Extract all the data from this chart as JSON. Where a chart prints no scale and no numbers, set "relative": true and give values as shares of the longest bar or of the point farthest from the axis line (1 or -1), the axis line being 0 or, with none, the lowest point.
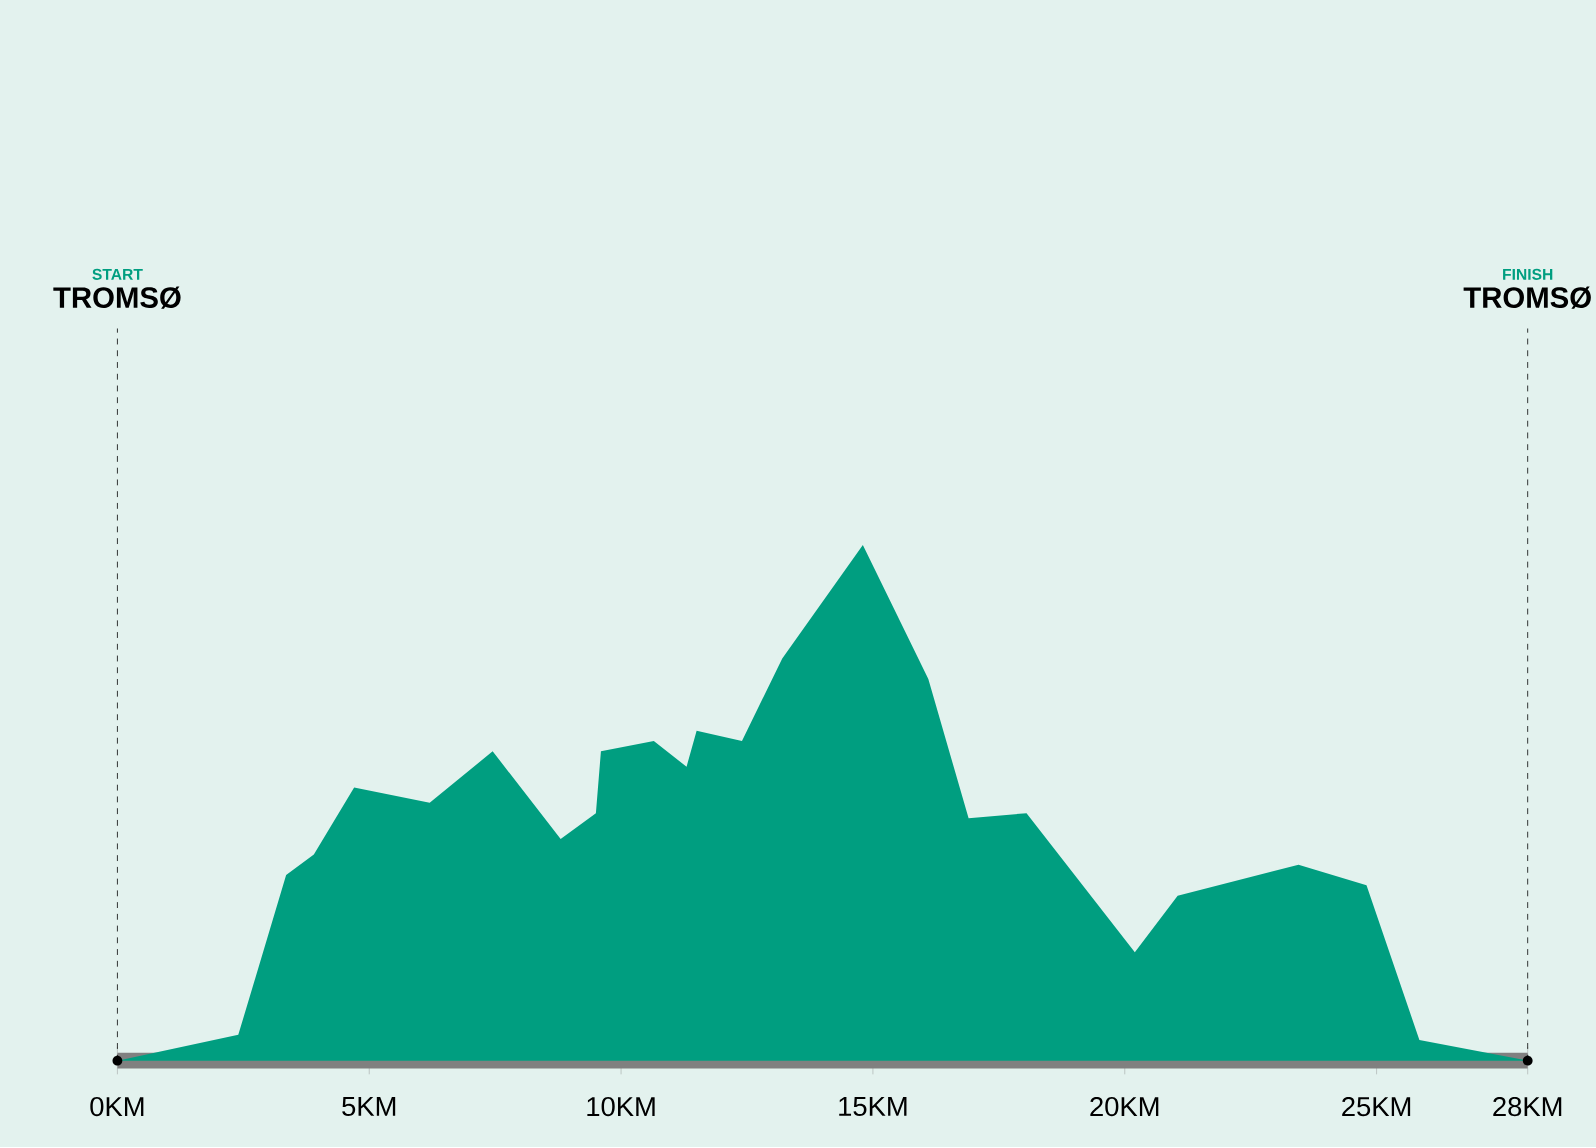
{
  "chart_data": {
    "type": "area",
    "relative": true,
    "color": "#009e80",
    "x": [
      0,
      2.4,
      3.35,
      3.9,
      4.7,
      6.2,
      7.45,
      8.8,
      9.5,
      9.6,
      10.65,
      11.3,
      11.5,
      12.4,
      13.2,
      14.8,
      16.1,
      16.9,
      18.05,
      20.2,
      21.05,
      23.45,
      24.8,
      25.85,
      28
    ],
    "values": [
      0,
      0.05,
      0.36,
      0.4,
      0.53,
      0.5,
      0.6,
      0.43,
      0.48,
      0.6,
      0.62,
      0.57,
      0.64,
      0.62,
      0.78,
      1,
      0.74,
      0.47,
      0.48,
      0.21,
      0.32,
      0.38,
      0.34,
      0.04,
      0
    ],
    "xlim": [
      0,
      28
    ],
    "xticks": [
      {
        "value": 0,
        "label": "0KM"
      },
      {
        "value": 5,
        "label": "5KM"
      },
      {
        "value": 10,
        "label": "10KM"
      },
      {
        "value": 15,
        "label": "15KM"
      },
      {
        "value": 20,
        "label": "20KM"
      },
      {
        "value": 25,
        "label": "25KM"
      },
      {
        "value": 28,
        "label": "28KM"
      }
    ],
    "ref_lines": [
      {
        "axis": "x",
        "value": 0,
        "label": "TROMSØ",
        "line_style": "dashed"
      },
      {
        "axis": "x",
        "value": 28,
        "label": "TROMSØ",
        "line_style": "dashed"
      }
    ],
    "annotations": [
      "START",
      "FINISH"
    ],
    "marker": "none"
  }
}
